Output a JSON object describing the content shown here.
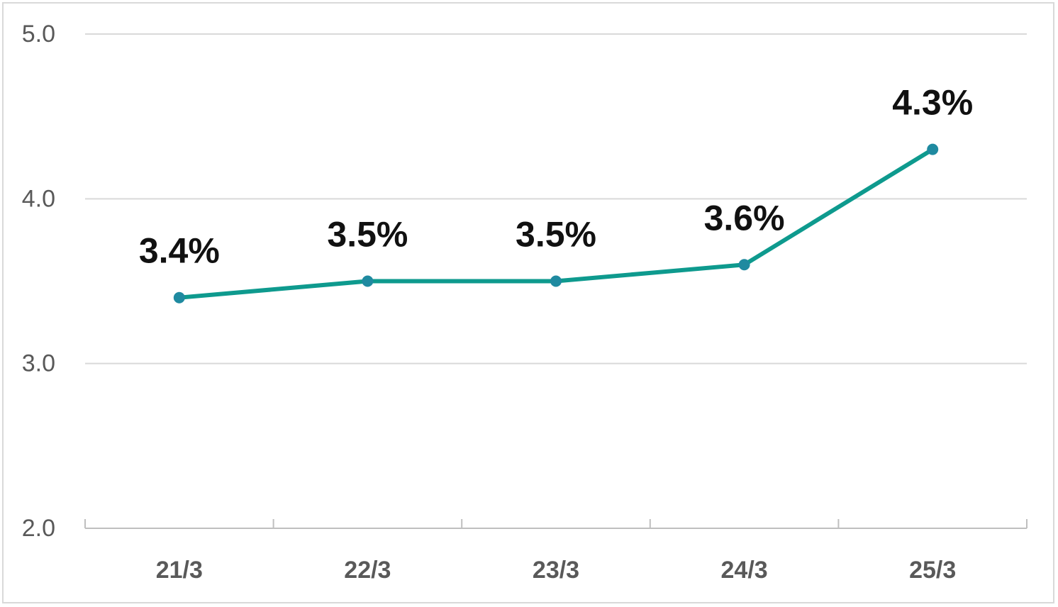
{
  "chart_data": {
    "type": "line",
    "title": "",
    "xlabel": "",
    "ylabel": "",
    "categories": [
      "21/3",
      "22/3",
      "23/3",
      "24/3",
      "25/3"
    ],
    "series": [
      {
        "values": [
          3.4,
          3.5,
          3.5,
          3.6,
          4.3
        ],
        "data_labels": [
          "3.4%",
          "3.5%",
          "3.5%",
          "3.6%",
          "4.3%"
        ],
        "color": "#0e9a8e",
        "marker_color": "#1f8aa0"
      }
    ],
    "ylim": [
      2.0,
      5.0
    ],
    "yticks": [
      "2.0",
      "3.0",
      "4.0",
      "5.0"
    ],
    "grid": true,
    "legend": "none"
  }
}
